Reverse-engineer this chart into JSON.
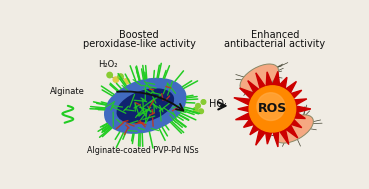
{
  "bg_color": "#f0ece4",
  "title1": "Boosted",
  "title2": "peroxidase-like activity",
  "title3": "Enhanced",
  "title4": "antibacterial activity",
  "label_alginate": "Alginate",
  "label_h2o2": "H₂O₂",
  "label_nss": "Alginate-coated PVP-Pd NSs",
  "label_ho": "HO·",
  "label_ros": "ROS",
  "arrow_color": "#111111",
  "green_color": "#22cc22",
  "blue_color": "#2255cc",
  "red_burst": "#cc0000",
  "orange_burst": "#ff8800",
  "orange_light": "#ffaa44",
  "salmon_bacteria": "#f5a882",
  "text_color": "#111111"
}
